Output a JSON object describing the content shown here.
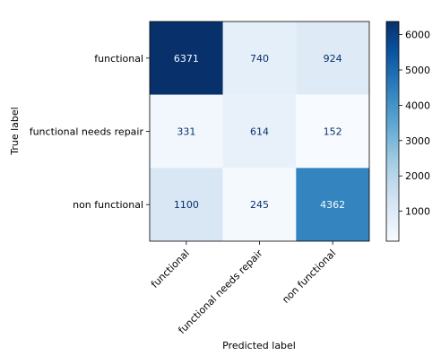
{
  "chart_data": {
    "type": "heatmap",
    "title": "",
    "xlabel": "Predicted label",
    "ylabel": "True label",
    "x_categories": [
      "functional",
      "functional needs repair",
      "non functional"
    ],
    "y_categories": [
      "functional",
      "functional needs repair",
      "non functional"
    ],
    "values": [
      [
        6371,
        740,
        924
      ],
      [
        331,
        614,
        152
      ],
      [
        1100,
        245,
        4362
      ]
    ],
    "colormap": "Blues",
    "colorbar": {
      "min": 152,
      "max": 6371,
      "ticks": [
        1000,
        2000,
        3000,
        4000,
        5000,
        6000
      ]
    },
    "grid": false
  }
}
